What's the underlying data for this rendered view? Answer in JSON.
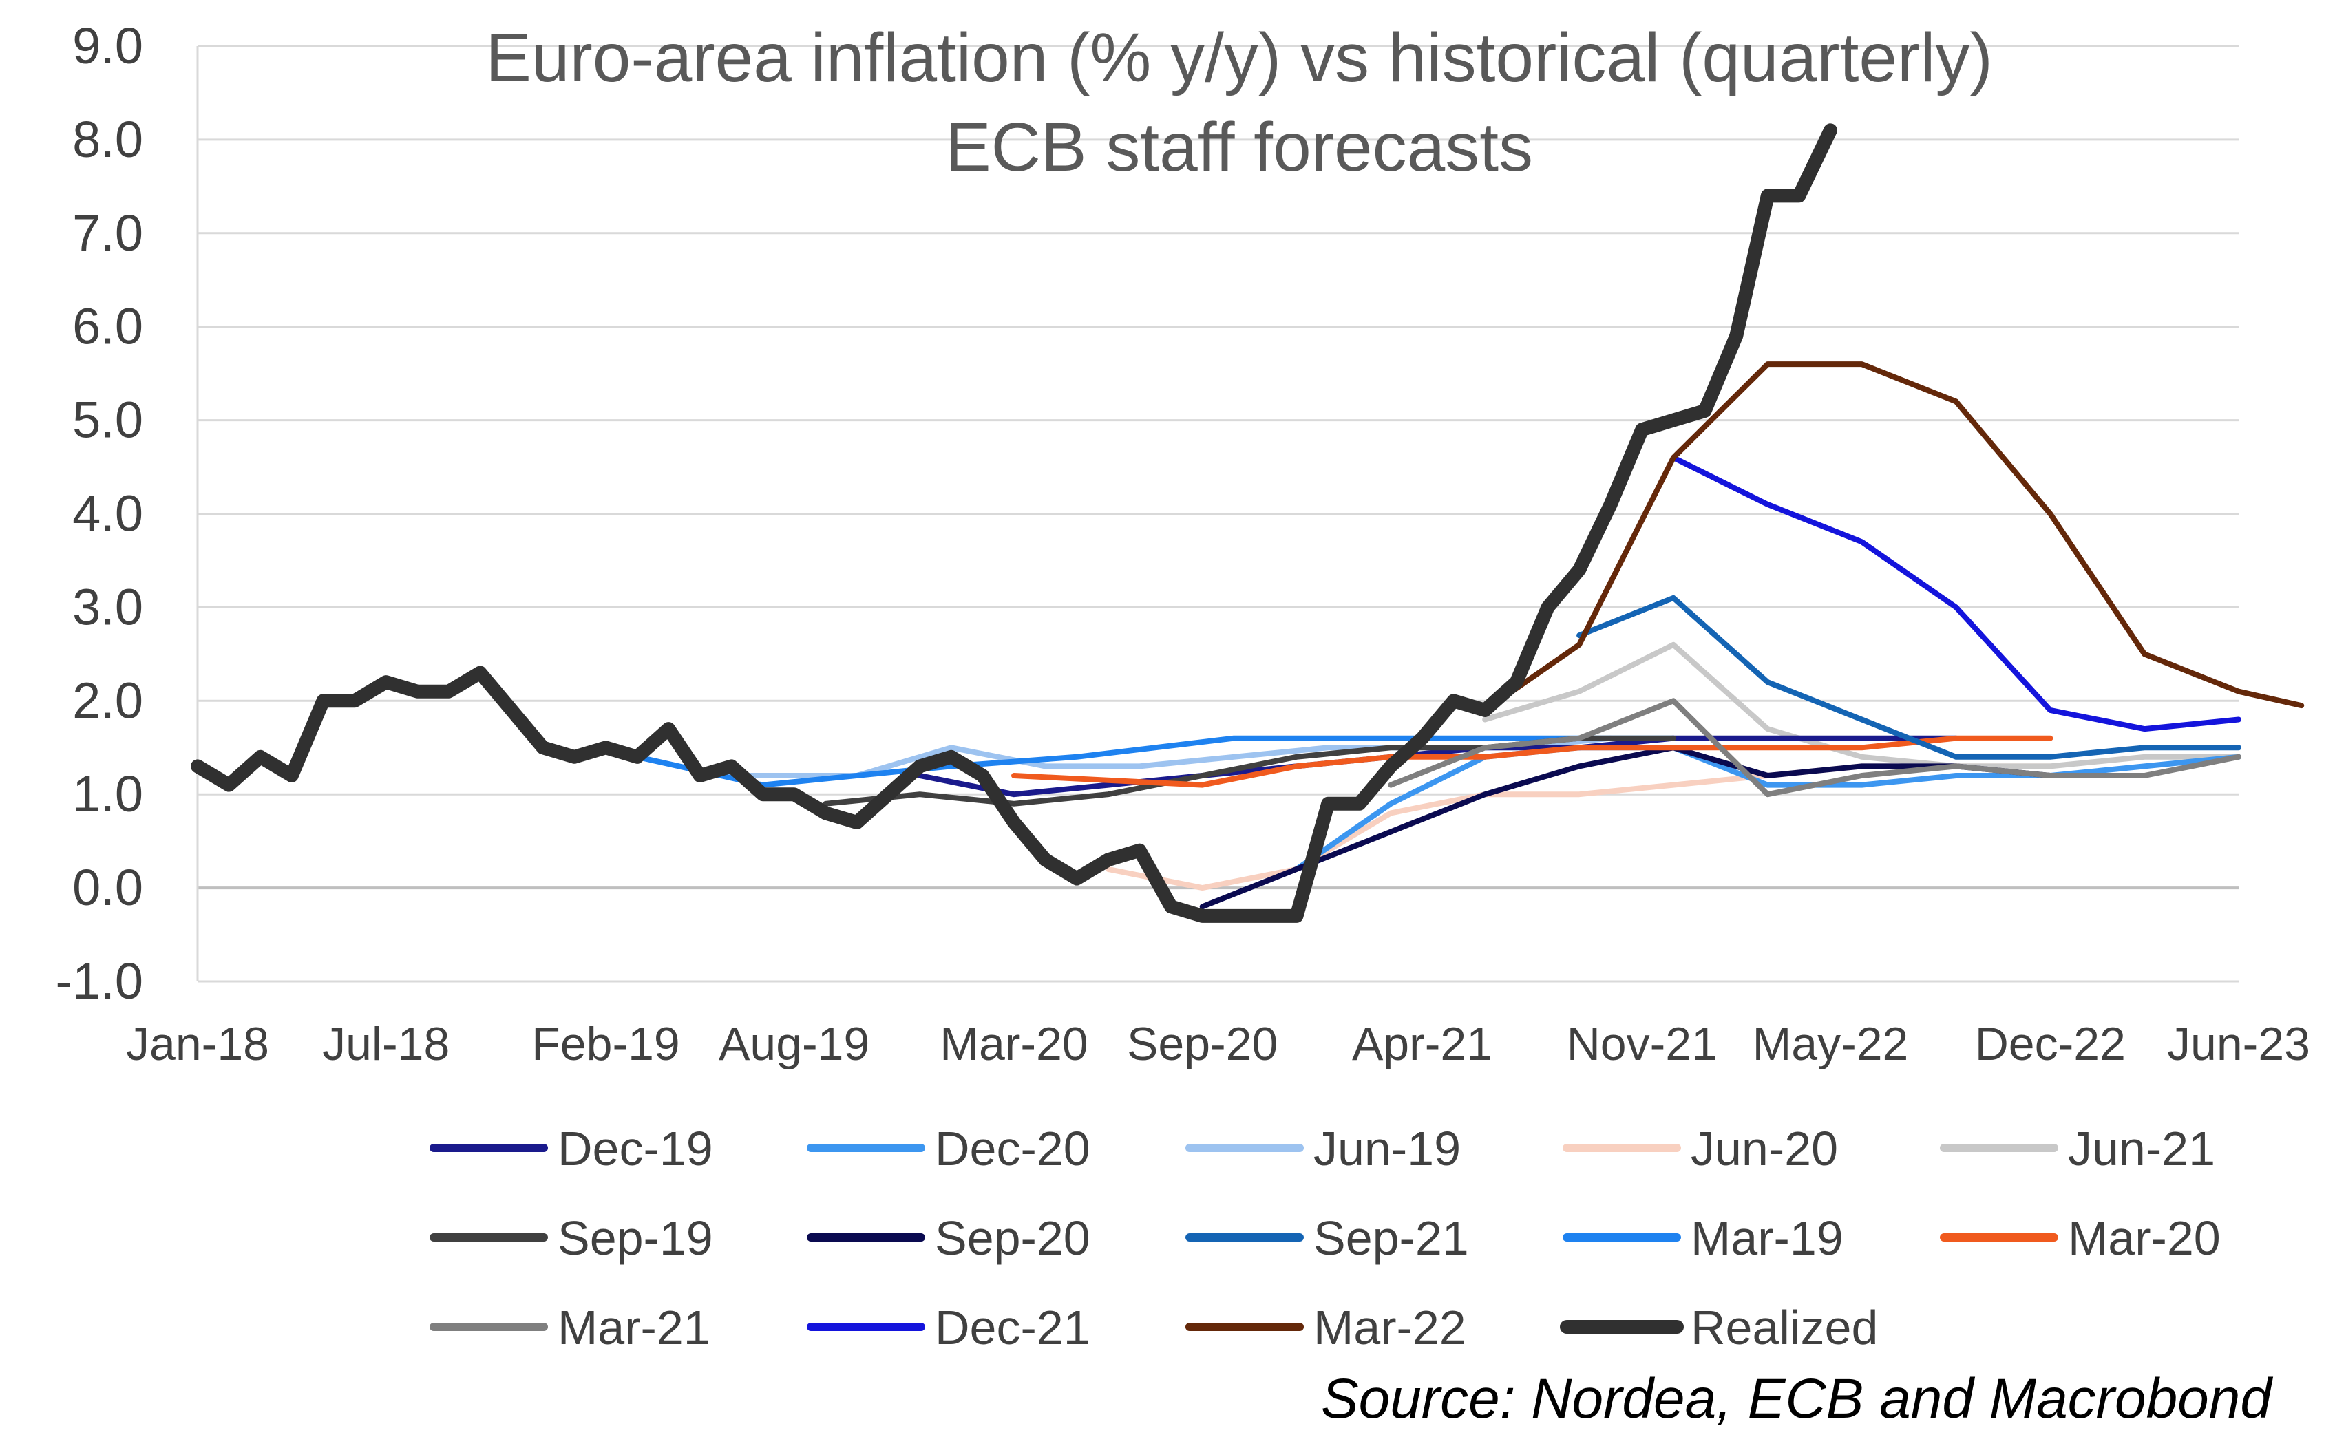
{
  "chart_data": {
    "type": "line",
    "title": "Euro-area inflation (% y/y) vs historical (quarterly) ECB staff forecasts",
    "title_lines": [
      "Euro-area inflation (% y/y) vs historical (quarterly)",
      "ECB staff forecasts"
    ],
    "xlabel": "",
    "ylabel": "",
    "ylim": [
      -1.0,
      9.0
    ],
    "y_ticks": [
      9.0,
      8.0,
      7.0,
      6.0,
      5.0,
      4.0,
      3.0,
      2.0,
      1.0,
      0.0,
      -1.0
    ],
    "y_tick_labels": [
      "9.0",
      "8.0",
      "7.0",
      "6.0",
      "5.0",
      "4.0",
      "3.0",
      "2.0",
      "1.0",
      "0.0",
      "-1.0"
    ],
    "x_range": [
      "2018-01",
      "2023-06"
    ],
    "x_tick_labels": [
      "Jan-18",
      "Jul-18",
      "Feb-19",
      "Aug-19",
      "Mar-20",
      "Sep-20",
      "Apr-21",
      "Nov-21",
      "May-22",
      "Dec-22",
      "Jun-23"
    ],
    "x_ticks": [
      "2018-01",
      "2018-07",
      "2019-02",
      "2019-08",
      "2020-03",
      "2020-09",
      "2021-04",
      "2021-11",
      "2022-05",
      "2022-12",
      "2023-06"
    ],
    "grid": "horizontal",
    "legend_position": "bottom",
    "source": "Source: Nordea, ECB and Macrobond",
    "series": [
      {
        "name": "Jun-19",
        "color": "#9DC3F0",
        "width": 8,
        "points": [
          [
            "2019-06",
            1.2
          ],
          [
            "2019-10",
            1.2
          ],
          [
            "2020-01",
            1.5
          ],
          [
            "2020-04",
            1.3
          ],
          [
            "2020-07",
            1.3
          ],
          [
            "2020-10",
            1.4
          ],
          [
            "2021-01",
            1.5
          ],
          [
            "2021-04",
            1.5
          ],
          [
            "2021-07",
            1.5
          ],
          [
            "2021-10",
            1.6
          ]
        ]
      },
      {
        "name": "Jun-20",
        "color": "#F8D0C0",
        "width": 8,
        "points": [
          [
            "2020-06",
            0.2
          ],
          [
            "2020-09",
            0.0
          ],
          [
            "2020-12",
            0.2
          ],
          [
            "2021-03",
            0.8
          ],
          [
            "2021-06",
            1.0
          ],
          [
            "2021-09",
            1.0
          ],
          [
            "2021-12",
            1.1
          ],
          [
            "2022-03",
            1.2
          ],
          [
            "2022-06",
            1.3
          ],
          [
            "2022-09",
            1.3
          ],
          [
            "2022-12",
            1.3
          ]
        ]
      },
      {
        "name": "Jun-21",
        "color": "#C8C8C8",
        "width": 8,
        "points": [
          [
            "2021-06",
            1.8
          ],
          [
            "2021-09",
            2.1
          ],
          [
            "2021-12",
            2.6
          ],
          [
            "2022-03",
            1.7
          ],
          [
            "2022-06",
            1.4
          ],
          [
            "2022-09",
            1.3
          ],
          [
            "2022-12",
            1.3
          ],
          [
            "2023-03",
            1.4
          ],
          [
            "2023-06",
            1.4
          ]
        ]
      },
      {
        "name": "Mar-19",
        "color": "#1E82F0",
        "width": 8,
        "points": [
          [
            "2019-03",
            1.4
          ],
          [
            "2019-07",
            1.1
          ],
          [
            "2020-01",
            1.3
          ],
          [
            "2020-05",
            1.4
          ],
          [
            "2020-10",
            1.6
          ],
          [
            "2021-02",
            1.6
          ],
          [
            "2021-06",
            1.6
          ],
          [
            "2021-12",
            1.6
          ]
        ]
      },
      {
        "name": "Dec-20",
        "color": "#3C96F0",
        "width": 8,
        "points": [
          [
            "2020-12",
            0.2
          ],
          [
            "2021-03",
            0.9
          ],
          [
            "2021-06",
            1.4
          ],
          [
            "2021-09",
            1.5
          ],
          [
            "2021-12",
            1.5
          ],
          [
            "2022-03",
            1.1
          ],
          [
            "2022-06",
            1.1
          ],
          [
            "2022-09",
            1.2
          ],
          [
            "2022-12",
            1.2
          ],
          [
            "2023-03",
            1.3
          ],
          [
            "2023-06",
            1.4
          ]
        ]
      },
      {
        "name": "Dec-19",
        "color": "#1A1A8C",
        "width": 8,
        "points": [
          [
            "2019-12",
            1.2
          ],
          [
            "2020-03",
            1.0
          ],
          [
            "2020-06",
            1.1
          ],
          [
            "2020-09",
            1.2
          ],
          [
            "2020-12",
            1.3
          ],
          [
            "2021-03",
            1.4
          ],
          [
            "2021-06",
            1.5
          ],
          [
            "2021-09",
            1.5
          ],
          [
            "2021-12",
            1.6
          ],
          [
            "2022-03",
            1.6
          ],
          [
            "2022-06",
            1.6
          ],
          [
            "2022-09",
            1.6
          ]
        ]
      },
      {
        "name": "Sep-19",
        "color": "#404040",
        "width": 8,
        "points": [
          [
            "2019-09",
            0.9
          ],
          [
            "2019-12",
            1.0
          ],
          [
            "2020-03",
            0.9
          ],
          [
            "2020-06",
            1.0
          ],
          [
            "2020-09",
            1.2
          ],
          [
            "2020-12",
            1.4
          ],
          [
            "2021-03",
            1.5
          ],
          [
            "2021-06",
            1.5
          ],
          [
            "2021-09",
            1.6
          ],
          [
            "2021-12",
            1.6
          ]
        ]
      },
      {
        "name": "Sep-20",
        "color": "#0A0A50",
        "width": 8,
        "points": [
          [
            "2020-09",
            -0.2
          ],
          [
            "2020-12",
            0.2
          ],
          [
            "2021-03",
            0.6
          ],
          [
            "2021-06",
            1.0
          ],
          [
            "2021-09",
            1.3
          ],
          [
            "2021-12",
            1.5
          ],
          [
            "2022-03",
            1.2
          ],
          [
            "2022-06",
            1.3
          ],
          [
            "2022-09",
            1.3
          ],
          [
            "2022-12",
            1.2
          ]
        ]
      },
      {
        "name": "Mar-20",
        "color": "#F05A1E",
        "width": 8,
        "points": [
          [
            "2020-03",
            1.2
          ],
          [
            "2020-09",
            1.1
          ],
          [
            "2020-12",
            1.3
          ],
          [
            "2021-03",
            1.4
          ],
          [
            "2021-06",
            1.4
          ],
          [
            "2021-09",
            1.5
          ],
          [
            "2021-12",
            1.5
          ],
          [
            "2022-03",
            1.5
          ],
          [
            "2022-06",
            1.5
          ],
          [
            "2022-09",
            1.6
          ],
          [
            "2022-12",
            1.6
          ]
        ]
      },
      {
        "name": "Mar-21",
        "color": "#7F7F7F",
        "width": 8,
        "points": [
          [
            "2021-03",
            1.1
          ],
          [
            "2021-06",
            1.5
          ],
          [
            "2021-09",
            1.6
          ],
          [
            "2021-12",
            2.0
          ],
          [
            "2022-03",
            1.0
          ],
          [
            "2022-06",
            1.2
          ],
          [
            "2022-09",
            1.3
          ],
          [
            "2022-12",
            1.2
          ],
          [
            "2023-03",
            1.2
          ],
          [
            "2023-06",
            1.4
          ]
        ]
      },
      {
        "name": "Sep-21",
        "color": "#1464B4",
        "width": 8,
        "points": [
          [
            "2021-09",
            2.7
          ],
          [
            "2021-12",
            3.1
          ],
          [
            "2022-03",
            2.2
          ],
          [
            "2022-06",
            1.8
          ],
          [
            "2022-09",
            1.4
          ],
          [
            "2022-12",
            1.4
          ],
          [
            "2023-03",
            1.5
          ],
          [
            "2023-06",
            1.5
          ]
        ]
      },
      {
        "name": "Dec-21",
        "color": "#1414DC",
        "width": 8,
        "points": [
          [
            "2021-12",
            4.6
          ],
          [
            "2022-03",
            4.1
          ],
          [
            "2022-06",
            3.7
          ],
          [
            "2022-09",
            3.0
          ],
          [
            "2022-12",
            1.9
          ],
          [
            "2023-03",
            1.7
          ],
          [
            "2023-06",
            1.8
          ]
        ]
      },
      {
        "name": "Mar-22",
        "color": "#64280A",
        "width": 8,
        "points": [
          [
            "2021-06",
            1.9
          ],
          [
            "2021-09",
            2.6
          ],
          [
            "2021-12",
            4.6
          ],
          [
            "2022-03",
            5.6
          ],
          [
            "2022-06",
            5.6
          ],
          [
            "2022-09",
            5.2
          ],
          [
            "2022-12",
            4.0
          ],
          [
            "2023-03",
            2.5
          ],
          [
            "2023-06",
            2.1
          ],
          [
            "2023-08",
            1.95
          ]
        ]
      },
      {
        "name": "Realized",
        "color": "#303030",
        "width": 20,
        "points": [
          [
            "2018-01",
            1.3
          ],
          [
            "2018-02",
            1.1
          ],
          [
            "2018-03",
            1.4
          ],
          [
            "2018-04",
            1.2
          ],
          [
            "2018-05",
            2.0
          ],
          [
            "2018-06",
            2.0
          ],
          [
            "2018-07",
            2.2
          ],
          [
            "2018-08",
            2.1
          ],
          [
            "2018-09",
            2.1
          ],
          [
            "2018-10",
            2.3
          ],
          [
            "2018-11",
            1.9
          ],
          [
            "2018-12",
            1.5
          ],
          [
            "2019-01",
            1.4
          ],
          [
            "2019-02",
            1.5
          ],
          [
            "2019-03",
            1.4
          ],
          [
            "2019-04",
            1.7
          ],
          [
            "2019-05",
            1.2
          ],
          [
            "2019-06",
            1.3
          ],
          [
            "2019-07",
            1.0
          ],
          [
            "2019-08",
            1.0
          ],
          [
            "2019-09",
            0.8
          ],
          [
            "2019-10",
            0.7
          ],
          [
            "2019-11",
            1.0
          ],
          [
            "2019-12",
            1.3
          ],
          [
            "2020-01",
            1.4
          ],
          [
            "2020-02",
            1.2
          ],
          [
            "2020-03",
            0.7
          ],
          [
            "2020-04",
            0.3
          ],
          [
            "2020-05",
            0.1
          ],
          [
            "2020-06",
            0.3
          ],
          [
            "2020-07",
            0.4
          ],
          [
            "2020-08",
            -0.2
          ],
          [
            "2020-09",
            -0.3
          ],
          [
            "2020-10",
            -0.3
          ],
          [
            "2020-11",
            -0.3
          ],
          [
            "2020-12",
            -0.3
          ],
          [
            "2021-01",
            0.9
          ],
          [
            "2021-02",
            0.9
          ],
          [
            "2021-03",
            1.3
          ],
          [
            "2021-04",
            1.6
          ],
          [
            "2021-05",
            2.0
          ],
          [
            "2021-06",
            1.9
          ],
          [
            "2021-07",
            2.2
          ],
          [
            "2021-08",
            3.0
          ],
          [
            "2021-09",
            3.4
          ],
          [
            "2021-10",
            4.1
          ],
          [
            "2021-11",
            4.9
          ],
          [
            "2021-12",
            5.0
          ],
          [
            "2022-01",
            5.1
          ],
          [
            "2022-02",
            5.9
          ],
          [
            "2022-03",
            7.4
          ],
          [
            "2022-04",
            7.4
          ],
          [
            "2022-05",
            8.1
          ]
        ]
      }
    ]
  },
  "legend": {
    "rows": [
      [
        "Dec-19",
        "Dec-20",
        "Jun-19",
        "Jun-20",
        "Jun-21"
      ],
      [
        "Sep-19",
        "Sep-20",
        "Sep-21",
        "Mar-19",
        "Mar-20"
      ],
      [
        "Mar-21",
        "Dec-21",
        "Mar-22",
        "Realized"
      ]
    ]
  }
}
